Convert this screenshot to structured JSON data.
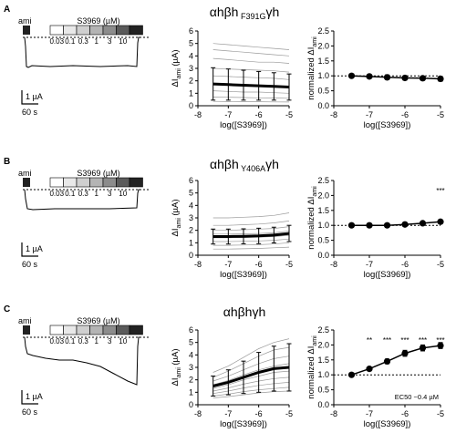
{
  "figure": {
    "scale_bar": {
      "current": "1 µA",
      "time": "60 s"
    },
    "ami_label": "ami",
    "concentration_label": "S3969 (µM)",
    "concentrations": [
      "0.03",
      "0.1",
      "0.3",
      "1",
      "3",
      "10"
    ],
    "bar_shades": [
      "#ffffff",
      "#e8e8e8",
      "#cfcfcf",
      "#b4b4b4",
      "#8c8c8c",
      "#5a5a5a",
      "#222222"
    ]
  },
  "panels": [
    {
      "letter": "A",
      "title_main": "αhβh",
      "title_mut": " F391G",
      "title_end": "γh",
      "significance": [],
      "ec50": ""
    },
    {
      "letter": "B",
      "title_main": "αhβh",
      "title_mut": " Y406A",
      "title_end": "γh",
      "significance": [
        "***"
      ],
      "ec50": ""
    },
    {
      "letter": "C",
      "title_main": "αhβhγh",
      "title_mut": "",
      "title_end": "",
      "significance": [
        "**",
        "***",
        "***",
        "***",
        "***"
      ],
      "ec50": "EC50 ~0.4 µM"
    }
  ],
  "chart_data": [
    {
      "type": "line",
      "panel": "A",
      "title": "αhβh F391Gγh",
      "xlabel": "log([S3969])",
      "ylabel": "ΔIami (µA)",
      "xlim": [
        -8,
        -5
      ],
      "ylim": [
        0,
        6
      ],
      "xticks": [
        "-8",
        "-7",
        "-6",
        "-5"
      ],
      "yticks": [
        "0",
        "1",
        "2",
        "3",
        "4",
        "5",
        "6"
      ],
      "x": [
        -7.5,
        -7,
        -6.5,
        -6,
        -5.5,
        -5
      ],
      "mean": [
        1.75,
        1.7,
        1.65,
        1.6,
        1.55,
        1.5
      ],
      "error": [
        1.3,
        1.25,
        1.2,
        1.15,
        1.1,
        1.05
      ],
      "individual": [
        [
          5.0,
          4.9,
          4.8,
          4.7,
          4.6,
          4.5
        ],
        [
          4.5,
          4.4,
          4.3,
          4.2,
          4.1,
          4.0
        ],
        [
          3.8,
          3.7,
          3.6,
          3.5,
          3.5,
          3.4
        ],
        [
          3.0,
          2.95,
          2.9,
          2.85,
          2.8,
          2.7
        ],
        [
          2.4,
          2.35,
          2.3,
          2.25,
          2.2,
          2.1
        ],
        [
          1.8,
          1.75,
          1.7,
          1.65,
          1.6,
          1.55
        ],
        [
          1.2,
          1.15,
          1.1,
          1.1,
          1.05,
          1.0
        ],
        [
          0.7,
          0.68,
          0.66,
          0.64,
          0.62,
          0.6
        ],
        [
          0.35,
          0.34,
          0.33,
          0.32,
          0.31,
          0.3
        ]
      ]
    },
    {
      "type": "line",
      "panel": "A",
      "xlabel": "log([S3969])",
      "ylabel": "normalized ΔIami",
      "xlim": [
        -8,
        -5
      ],
      "ylim": [
        0,
        2.5
      ],
      "xticks": [
        "-8",
        "-7",
        "-6",
        "-5"
      ],
      "yticks": [
        "0.0",
        "0.5",
        "1.0",
        "1.5",
        "2.0",
        "2.5"
      ],
      "reference_y": 1.0,
      "x": [
        -7.5,
        -7,
        -6.5,
        -6,
        -5.5,
        -5
      ],
      "mean": [
        1.0,
        0.98,
        0.95,
        0.93,
        0.92,
        0.9
      ],
      "error": [
        0.03,
        0.04,
        0.08,
        0.07,
        0.07,
        0.08
      ]
    },
    {
      "type": "line",
      "panel": "B",
      "title": "αhβh Y406Aγh",
      "xlabel": "log([S3969])",
      "ylabel": "ΔIami (µA)",
      "xlim": [
        -8,
        -5
      ],
      "ylim": [
        0,
        6
      ],
      "xticks": [
        "-8",
        "-7",
        "-6",
        "-5"
      ],
      "yticks": [
        "0",
        "1",
        "2",
        "3",
        "4",
        "5",
        "6"
      ],
      "x": [
        -7.5,
        -7,
        -6.5,
        -6,
        -5.5,
        -5
      ],
      "mean": [
        1.5,
        1.5,
        1.52,
        1.55,
        1.62,
        1.75
      ],
      "error": [
        0.6,
        0.6,
        0.6,
        0.62,
        0.63,
        0.65
      ],
      "individual": [
        [
          3.0,
          3.0,
          3.05,
          3.1,
          3.2,
          3.4
        ],
        [
          2.4,
          2.4,
          2.45,
          2.5,
          2.6,
          2.75
        ],
        [
          2.0,
          2.0,
          2.05,
          2.1,
          2.15,
          2.3
        ],
        [
          1.7,
          1.7,
          1.72,
          1.75,
          1.8,
          1.95
        ],
        [
          1.4,
          1.4,
          1.42,
          1.45,
          1.5,
          1.6
        ],
        [
          1.1,
          1.1,
          1.12,
          1.15,
          1.2,
          1.3
        ],
        [
          0.8,
          0.8,
          0.82,
          0.85,
          0.9,
          1.0
        ],
        [
          0.5,
          0.5,
          0.52,
          0.55,
          0.6,
          0.65
        ]
      ]
    },
    {
      "type": "line",
      "panel": "B",
      "xlabel": "log([S3969])",
      "ylabel": "normalized ΔIami",
      "xlim": [
        -8,
        -5
      ],
      "ylim": [
        0,
        2.5
      ],
      "xticks": [
        "-8",
        "-7",
        "-6",
        "-5"
      ],
      "yticks": [
        "0.0",
        "0.5",
        "1.0",
        "1.5",
        "2.0",
        "2.5"
      ],
      "reference_y": 1.0,
      "x": [
        -7.5,
        -7,
        -6.5,
        -6,
        -5.5,
        -5
      ],
      "mean": [
        1.0,
        1.0,
        1.0,
        1.03,
        1.07,
        1.12
      ],
      "error": [
        0.02,
        0.02,
        0.03,
        0.03,
        0.04,
        0.06
      ]
    },
    {
      "type": "line",
      "panel": "C",
      "title": "αhβhγh",
      "xlabel": "log([S3969])",
      "ylabel": "ΔIami (µA)",
      "xlim": [
        -8,
        -5
      ],
      "ylim": [
        0,
        6
      ],
      "xticks": [
        "-8",
        "-7",
        "-6",
        "-5"
      ],
      "yticks": [
        "0",
        "1",
        "2",
        "3",
        "4",
        "5",
        "6"
      ],
      "x": [
        -7.5,
        -7,
        -6.5,
        -6,
        -5.5,
        -5
      ],
      "mean": [
        1.5,
        1.8,
        2.2,
        2.6,
        2.9,
        3.0
      ],
      "error": [
        0.8,
        1.0,
        1.3,
        1.6,
        1.8,
        1.9
      ],
      "individual": [
        [
          2.6,
          3.1,
          3.8,
          4.5,
          5.0,
          5.3
        ],
        [
          2.2,
          2.7,
          3.3,
          3.9,
          4.4,
          4.6
        ],
        [
          1.9,
          2.3,
          2.8,
          3.3,
          3.7,
          3.9
        ],
        [
          1.6,
          1.95,
          2.4,
          2.8,
          3.1,
          3.3
        ],
        [
          1.3,
          1.6,
          2.0,
          2.3,
          2.6,
          2.7
        ],
        [
          1.1,
          1.35,
          1.65,
          1.9,
          2.1,
          2.2
        ],
        [
          0.9,
          1.1,
          1.35,
          1.55,
          1.7,
          1.8
        ],
        [
          0.7,
          0.85,
          1.05,
          1.2,
          1.3,
          1.4
        ],
        [
          0.55,
          0.65,
          0.8,
          0.95,
          1.05,
          1.1
        ]
      ]
    },
    {
      "type": "line",
      "panel": "C",
      "xlabel": "log([S3969])",
      "ylabel": "normalized ΔIami",
      "xlim": [
        -8,
        -5
      ],
      "ylim": [
        0,
        2.5
      ],
      "xticks": [
        "-8",
        "-7",
        "-6",
        "-5"
      ],
      "yticks": [
        "0.0",
        "0.5",
        "1.0",
        "1.5",
        "2.0",
        "2.5"
      ],
      "reference_y": 1.0,
      "x": [
        -7.5,
        -7,
        -6.5,
        -6,
        -5.5,
        -5
      ],
      "mean": [
        1.0,
        1.2,
        1.45,
        1.72,
        1.9,
        1.98
      ],
      "error": [
        0.03,
        0.05,
        0.08,
        0.1,
        0.1,
        0.1
      ]
    }
  ]
}
